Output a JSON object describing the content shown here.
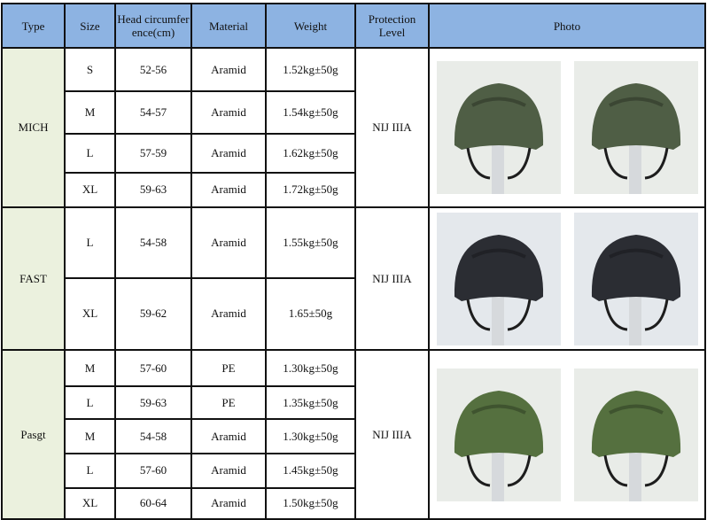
{
  "header": {
    "type": "Type",
    "size": "Size",
    "head": "Head circumference(cm)",
    "material": "Material",
    "weight": "Weight",
    "protection": "Protection Level",
    "photo": "Photo"
  },
  "groups": [
    {
      "type": "MICH",
      "protection": "NIJ IIIA",
      "helmet_color": "#4f5e45",
      "rows": [
        {
          "size": "S",
          "head": "52-56",
          "material": "Aramid",
          "weight": "1.52kg±50g"
        },
        {
          "size": "M",
          "head": "54-57",
          "material": "Aramid",
          "weight": "1.54kg±50g"
        },
        {
          "size": "L",
          "head": "57-59",
          "material": "Aramid",
          "weight": "1.62kg±50g"
        },
        {
          "size": "XL",
          "head": "59-63",
          "material": "Aramid",
          "weight": "1.72kg±50g"
        }
      ]
    },
    {
      "type": "FAST",
      "protection": "NIJ IIIA",
      "helmet_color": "#2b2d33",
      "rows": [
        {
          "size": "L",
          "head": "54-58",
          "material": "Aramid",
          "weight": "1.55kg±50g"
        },
        {
          "size": "XL",
          "head": "59-62",
          "material": "Aramid",
          "weight": "1.65±50g"
        }
      ]
    },
    {
      "type": "Pasgt",
      "protection": "NIJ IIIA",
      "helmet_color": "#55703f",
      "rows": [
        {
          "size": "M",
          "head": "57-60",
          "material": "PE",
          "weight": "1.30kg±50g"
        },
        {
          "size": "L",
          "head": "59-63",
          "material": "PE",
          "weight": "1.35kg±50g"
        },
        {
          "size": "M",
          "head": "54-58",
          "material": "Aramid",
          "weight": "1.30kg±50g"
        },
        {
          "size": "L",
          "head": "57-60",
          "material": "Aramid",
          "weight": "1.45kg±50g"
        },
        {
          "size": "XL",
          "head": "60-64",
          "material": "Aramid",
          "weight": "1.50kg±50g"
        }
      ]
    }
  ]
}
